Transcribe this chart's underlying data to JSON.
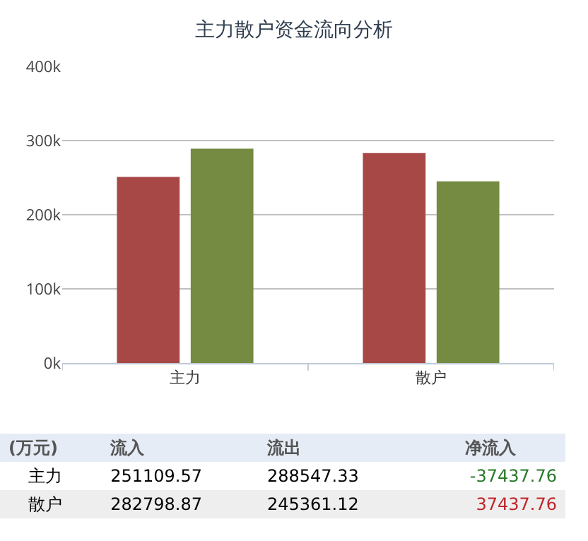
{
  "chart_data": {
    "type": "bar",
    "title": "主力散户资金流向分析",
    "categories": [
      "主力",
      "散户"
    ],
    "series": [
      {
        "color": "#a84846",
        "values": [
          251000,
          283000
        ]
      },
      {
        "color": "#758b41",
        "values": [
          289000,
          245000
        ]
      }
    ],
    "ylim": [
      0,
      400000
    ],
    "yticks": [
      {
        "value": 0,
        "label": "0k"
      },
      {
        "value": 100000,
        "label": "100k"
      },
      {
        "value": 200000,
        "label": "200k"
      },
      {
        "value": 300000,
        "label": "300k"
      },
      {
        "value": 400000,
        "label": "400k"
      }
    ],
    "grid": "y",
    "legend": false,
    "annotations": [
      "(万元)",
      "流入",
      "流出",
      "净流入",
      "251109.57",
      "288547.33",
      "-37437.76",
      "282798.87",
      "245361.12",
      "37437.76"
    ]
  }
}
